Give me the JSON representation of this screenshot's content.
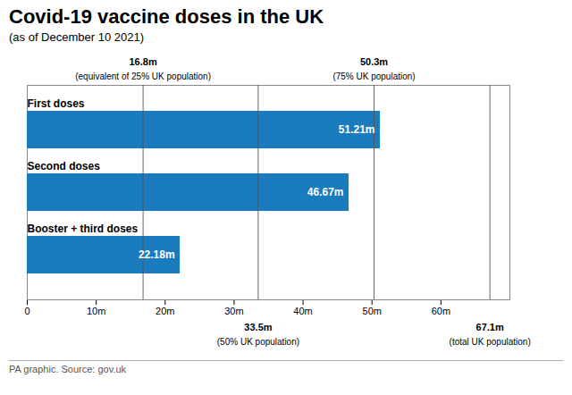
{
  "chart_data": {
    "type": "bar",
    "orientation": "horizontal",
    "title": "Covid-19 vaccine doses in the UK",
    "subtitle": "(as of December 10 2021)",
    "categories": [
      "First doses",
      "Second doses",
      "Booster + third doses"
    ],
    "values": [
      51.21,
      46.67,
      22.18
    ],
    "value_labels": [
      "51.21m",
      "46.67m",
      "22.18m"
    ],
    "data_labels": true,
    "color": "#1a7bbf",
    "xlim": [
      0,
      70
    ],
    "xticks": [
      0,
      {
        "value": 10,
        "label": "10m"
      },
      {
        "value": 20,
        "label": "20m"
      },
      {
        "value": 30,
        "label": "30m"
      },
      {
        "value": 40,
        "label": "40m"
      },
      {
        "value": 50,
        "label": "50m"
      },
      {
        "value": 60,
        "label": "60m"
      }
    ],
    "tick_labels": "x",
    "grid": false,
    "annotations": [
      {
        "x": 16.8,
        "label": "16.8m",
        "note": "(equivalent of 25% UK population)",
        "side": "top"
      },
      {
        "x": 50.3,
        "label": "50.3m",
        "note": "(75% UK population)",
        "side": "top"
      },
      {
        "x": 33.5,
        "label": "33.5m",
        "note": "(50% UK population)",
        "side": "bottom"
      },
      {
        "x": 67.1,
        "label": "67.1m",
        "note": "(total UK population)",
        "side": "bottom"
      }
    ],
    "footer": "PA graphic. Source: gov.uk"
  }
}
